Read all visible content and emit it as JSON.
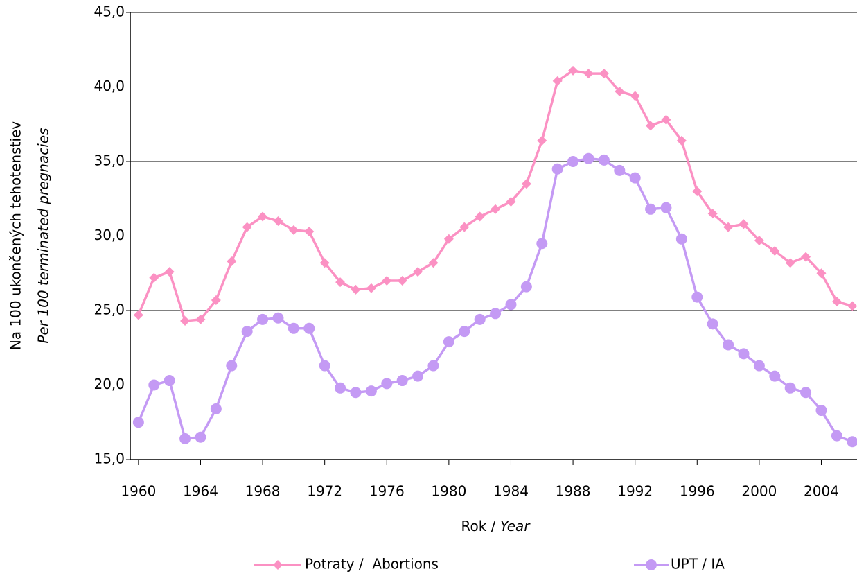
{
  "chart_data": {
    "type": "line",
    "ylabel": "Na 100 ukončených tehotenstiev",
    "ylabel_en": "Per 100 terminated pregnacies",
    "xlabel": "Rok /",
    "xlabel_en": "Year",
    "x": [
      1960,
      1961,
      1962,
      1963,
      1964,
      1965,
      1966,
      1967,
      1968,
      1969,
      1970,
      1971,
      1972,
      1973,
      1974,
      1975,
      1976,
      1977,
      1978,
      1979,
      1980,
      1981,
      1982,
      1983,
      1984,
      1985,
      1986,
      1987,
      1988,
      1989,
      1990,
      1991,
      1992,
      1993,
      1994,
      1995,
      1996,
      1997,
      1998,
      1999,
      2000,
      2001,
      2002,
      2003,
      2004,
      2005,
      2006
    ],
    "series": [
      {
        "name": "Potraty /  Abortions",
        "color": "#fb91c3",
        "marker": "diamond",
        "values": [
          24.7,
          27.2,
          27.6,
          24.3,
          24.4,
          25.7,
          28.3,
          30.6,
          31.3,
          31.0,
          30.4,
          30.3,
          28.2,
          26.9,
          26.4,
          26.5,
          27.0,
          27.0,
          27.6,
          28.2,
          29.8,
          30.6,
          31.3,
          31.8,
          32.3,
          33.5,
          36.4,
          40.4,
          41.1,
          40.9,
          40.9,
          39.7,
          39.4,
          37.4,
          37.8,
          36.4,
          33.0,
          31.5,
          30.6,
          30.8,
          29.7,
          29.0,
          28.2,
          28.6,
          27.5,
          25.6,
          25.3
        ]
      },
      {
        "name": "UPT / IA",
        "color": "#c49af4",
        "marker": "circle",
        "values": [
          17.5,
          20.0,
          20.3,
          16.4,
          16.5,
          18.4,
          21.3,
          23.6,
          24.4,
          24.5,
          23.8,
          23.8,
          21.3,
          19.8,
          19.5,
          19.6,
          20.1,
          20.3,
          20.6,
          21.3,
          22.9,
          23.6,
          24.4,
          24.8,
          25.4,
          26.6,
          29.5,
          34.5,
          35.0,
          35.2,
          35.1,
          34.4,
          33.9,
          31.8,
          31.9,
          29.8,
          25.9,
          24.1,
          22.7,
          22.1,
          21.3,
          20.6,
          19.8,
          19.5,
          18.3,
          16.6,
          16.2
        ]
      }
    ],
    "xlim": [
      1959.47,
      2006.3
    ],
    "xticks": [
      1960,
      1964,
      1968,
      1972,
      1976,
      1980,
      1984,
      1988,
      1992,
      1996,
      2000,
      2004
    ],
    "ylim": [
      15,
      45
    ],
    "yticks": [
      {
        "value": 15,
        "label": "15,0"
      },
      {
        "value": 20,
        "label": "20,0"
      },
      {
        "value": 25,
        "label": "25,0"
      },
      {
        "value": 30,
        "label": "30,0"
      },
      {
        "value": 35,
        "label": "35,0"
      },
      {
        "value": 40,
        "label": "40,0"
      },
      {
        "value": 45,
        "label": "45,0"
      }
    ],
    "grid": true,
    "legend": "bottom"
  }
}
